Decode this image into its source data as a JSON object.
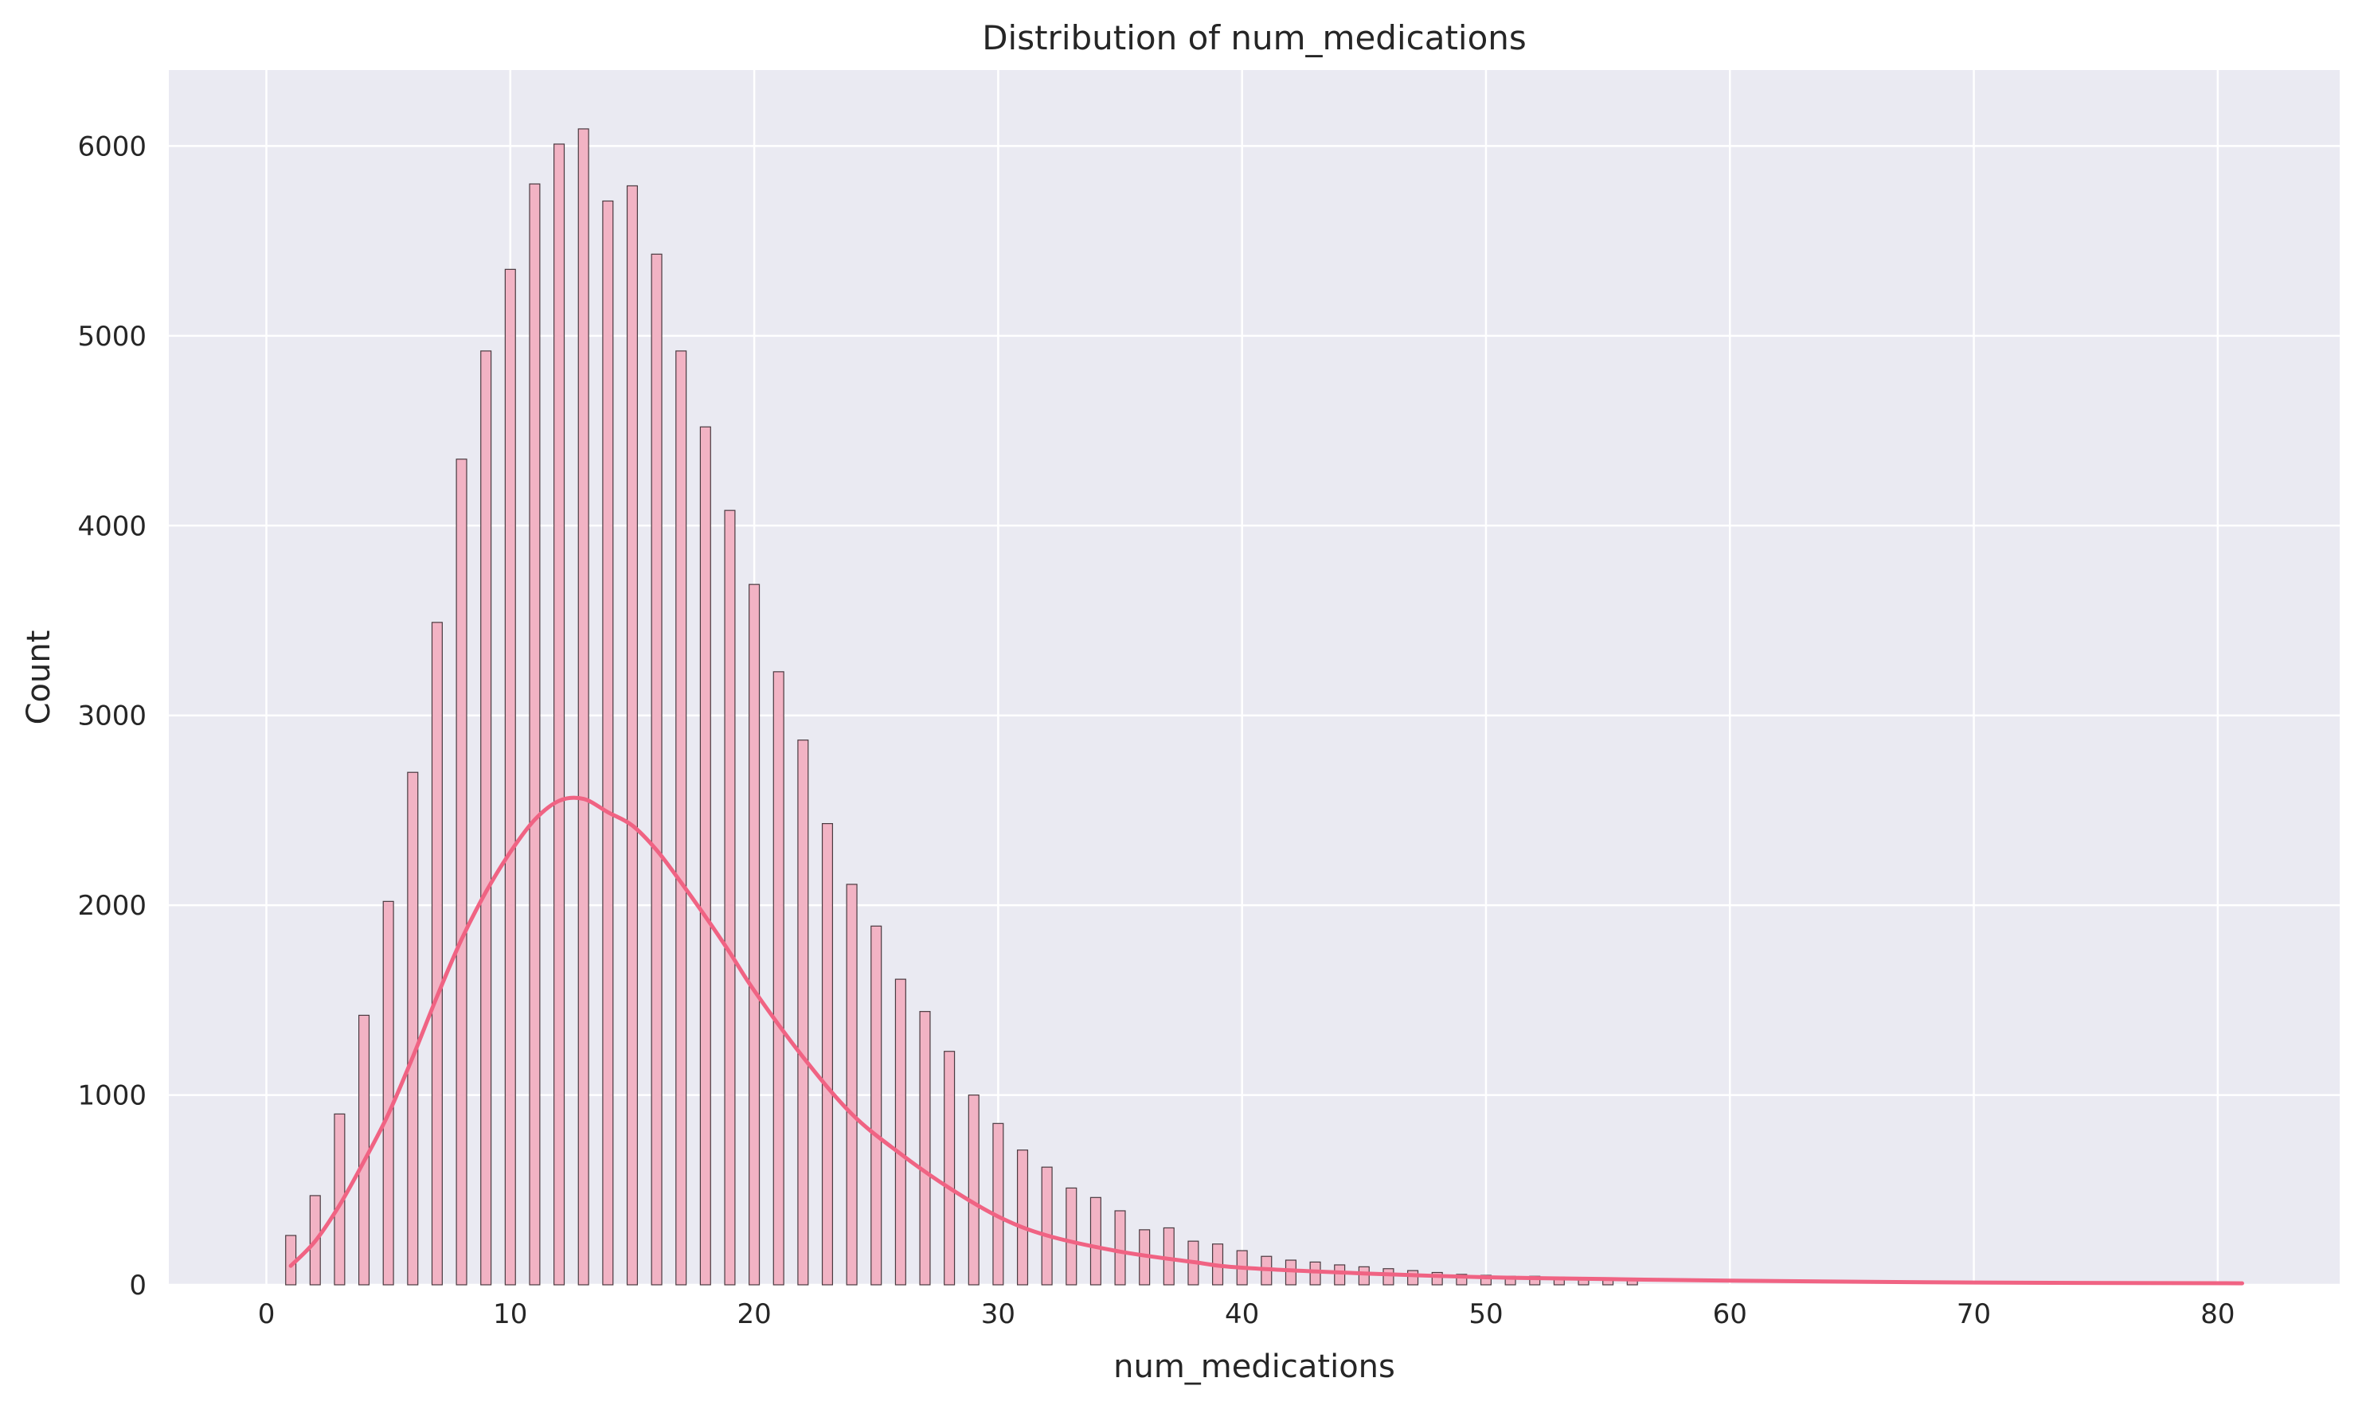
{
  "chart_data": {
    "type": "bar",
    "subtype": "histogram",
    "title": "Distribution of num_medications",
    "xlabel": "num_medications",
    "ylabel": "Count",
    "xlim": [
      -4,
      85
    ],
    "ylim": [
      0,
      6400
    ],
    "xticks": [
      0,
      10,
      20,
      30,
      40,
      50,
      60,
      70,
      80
    ],
    "yticks": [
      0,
      1000,
      2000,
      3000,
      4000,
      5000,
      6000
    ],
    "grid": true,
    "colors": {
      "background": "#eaeaf2",
      "grid": "#ffffff",
      "bar_fill": "#f2b3c4",
      "bar_edge": "#4a3a40",
      "kde_line": "#f06383"
    },
    "bins": {
      "x": [
        1,
        2,
        3,
        4,
        5,
        6,
        7,
        8,
        9,
        10,
        11,
        12,
        13,
        14,
        15,
        16,
        17,
        18,
        19,
        20,
        21,
        22,
        23,
        24,
        25,
        26,
        27,
        28,
        29,
        30,
        31,
        32,
        33,
        34,
        35,
        36,
        37,
        38,
        39,
        40,
        41,
        42,
        43,
        44,
        45,
        46,
        47,
        48,
        49,
        50,
        51,
        52,
        53,
        54,
        55,
        56
      ],
      "values": [
        260,
        470,
        900,
        1420,
        2020,
        2700,
        3490,
        4350,
        4920,
        5350,
        5800,
        6010,
        6090,
        5710,
        5790,
        5430,
        4920,
        4520,
        4080,
        3690,
        3230,
        2870,
        2430,
        2110,
        1890,
        1610,
        1440,
        1230,
        1000,
        850,
        710,
        620,
        510,
        460,
        390,
        290,
        300,
        230,
        215,
        180,
        150,
        130,
        120,
        105,
        95,
        85,
        75,
        65,
        55,
        50,
        45,
        45,
        40,
        38,
        35,
        35
      ]
    },
    "kde": {
      "x": [
        1,
        2,
        3,
        4,
        5,
        6,
        7,
        8,
        9,
        10,
        11,
        12,
        13,
        14,
        15,
        16,
        17,
        18,
        19,
        20,
        22,
        24,
        26,
        28,
        30,
        32,
        35,
        38,
        40,
        45,
        50,
        55,
        60,
        70,
        81
      ],
      "y": [
        100,
        230,
        420,
        650,
        900,
        1200,
        1520,
        1820,
        2070,
        2280,
        2450,
        2550,
        2560,
        2490,
        2420,
        2290,
        2120,
        1940,
        1750,
        1550,
        1200,
        900,
        690,
        510,
        360,
        260,
        175,
        120,
        90,
        60,
        40,
        30,
        22,
        12,
        8
      ]
    }
  }
}
